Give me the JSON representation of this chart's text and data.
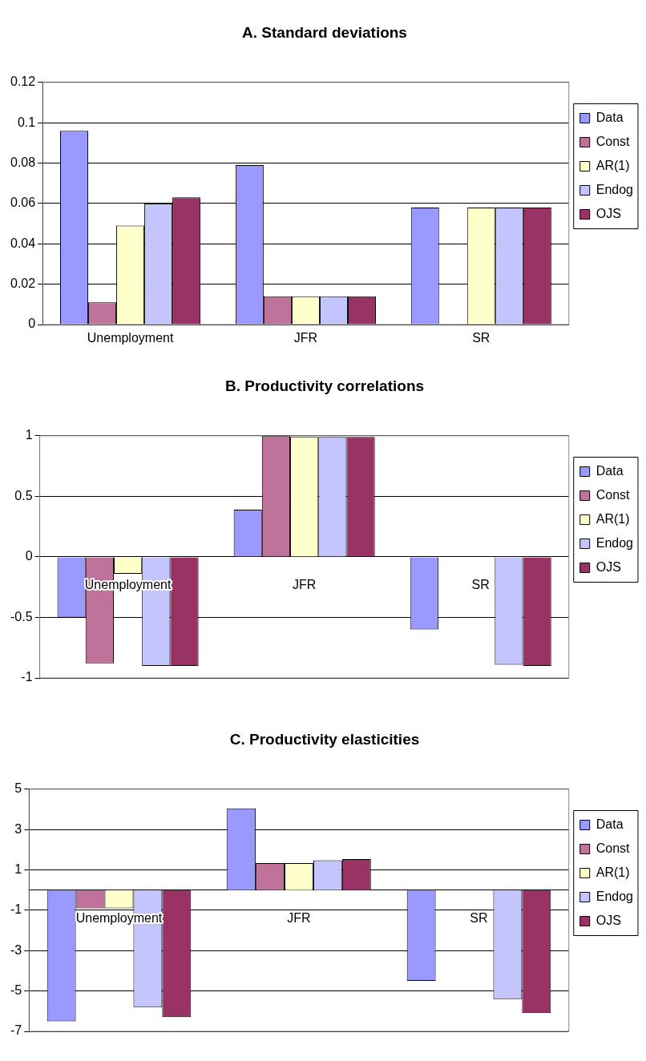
{
  "chart_data": [
    {
      "type": "bar",
      "title": "A. Standard deviations",
      "categories": [
        "Unemployment",
        "JFR",
        "SR"
      ],
      "series": [
        {
          "name": "Data",
          "color": "#9999ff",
          "values": [
            0.096,
            0.079,
            0.058
          ]
        },
        {
          "name": "Const",
          "color": "#c0739a",
          "values": [
            0.011,
            0.014,
            null
          ]
        },
        {
          "name": "AR(1)",
          "color": "#ffffcc",
          "values": [
            0.049,
            0.014,
            0.058
          ]
        },
        {
          "name": "Endog",
          "color": "#c4c4ff",
          "values": [
            0.06,
            0.014,
            0.058
          ]
        },
        {
          "name": "OJS",
          "color": "#993366",
          "values": [
            0.063,
            0.014,
            0.058
          ]
        }
      ],
      "ylim": [
        0,
        0.12
      ],
      "yticks": [
        0,
        0.02,
        0.04,
        0.06,
        0.08,
        0.1,
        0.12
      ],
      "grid": "y",
      "legend": "right"
    },
    {
      "type": "bar",
      "title": "B. Productivity correlations",
      "categories": [
        "Unemployment",
        "JFR",
        "SR"
      ],
      "series": [
        {
          "name": "Data",
          "color": "#9999ff",
          "values": [
            -0.5,
            0.39,
            -0.6
          ]
        },
        {
          "name": "Const",
          "color": "#c0739a",
          "values": [
            -0.88,
            1.0,
            null
          ]
        },
        {
          "name": "AR(1)",
          "color": "#ffffcc",
          "values": [
            -0.14,
            0.99,
            null
          ]
        },
        {
          "name": "Endog",
          "color": "#c4c4ff",
          "values": [
            -0.9,
            0.99,
            -0.89
          ]
        },
        {
          "name": "OJS",
          "color": "#993366",
          "values": [
            -0.9,
            0.99,
            -0.9
          ]
        }
      ],
      "ylim": [
        -1,
        1
      ],
      "yticks": [
        -1,
        -0.5,
        0,
        0.5,
        1
      ],
      "grid": "y",
      "legend": "right"
    },
    {
      "type": "bar",
      "title": "C. Productivity elasticities",
      "categories": [
        "Unemployment",
        "JFR",
        "SR"
      ],
      "series": [
        {
          "name": "Data",
          "color": "#9999ff",
          "values": [
            -6.5,
            4.05,
            -4.5
          ]
        },
        {
          "name": "Const",
          "color": "#c0739a",
          "values": [
            -0.9,
            1.34,
            null
          ]
        },
        {
          "name": "AR(1)",
          "color": "#ffffcc",
          "values": [
            -0.9,
            1.34,
            null
          ]
        },
        {
          "name": "Endog",
          "color": "#c4c4ff",
          "values": [
            -5.8,
            1.48,
            -5.4
          ]
        },
        {
          "name": "OJS",
          "color": "#993366",
          "values": [
            -6.3,
            1.54,
            -6.1
          ]
        }
      ],
      "ylim": [
        -7,
        5
      ],
      "yticks": [
        -7,
        -5,
        -3,
        -1,
        1,
        3,
        5
      ],
      "grid": "y",
      "legend": "right"
    }
  ]
}
